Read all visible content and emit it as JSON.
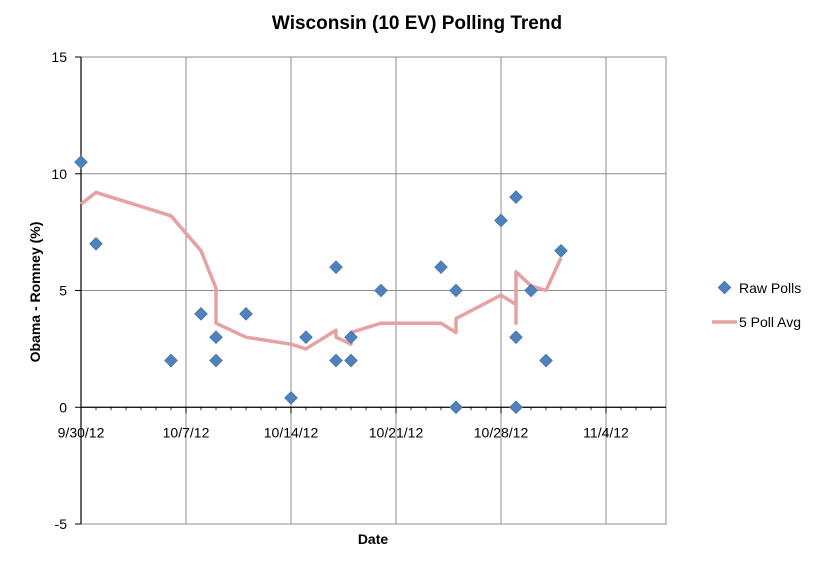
{
  "chart_data": {
    "type": "scatter",
    "title": "Wisconsin (10 EV) Polling Trend",
    "xlabel": "Date",
    "ylabel": "Obama - Romney (%)",
    "ylim": [
      -5,
      15
    ],
    "yticks": [
      -5,
      0,
      5,
      10,
      15
    ],
    "xlim": [
      "2012-09-30",
      "2012-11-08"
    ],
    "xticks": [
      {
        "date": "2012-09-30",
        "label": "9/30/12"
      },
      {
        "date": "2012-10-07",
        "label": "10/7/12"
      },
      {
        "date": "2012-10-14",
        "label": "10/14/12"
      },
      {
        "date": "2012-10-21",
        "label": "10/21/12"
      },
      {
        "date": "2012-10-28",
        "label": "10/28/12"
      },
      {
        "date": "2012-11-04",
        "label": "11/4/12"
      }
    ],
    "grid": true,
    "legend_position": "right",
    "series": [
      {
        "name": "Raw Polls",
        "kind": "scatter",
        "color": "#4F81BD",
        "points": [
          {
            "x": "2012-09-30",
            "y": 10.5
          },
          {
            "x": "2012-10-01",
            "y": 7
          },
          {
            "x": "2012-10-06",
            "y": 2
          },
          {
            "x": "2012-10-08",
            "y": 4
          },
          {
            "x": "2012-10-09",
            "y": 3
          },
          {
            "x": "2012-10-09",
            "y": 2
          },
          {
            "x": "2012-10-11",
            "y": 4
          },
          {
            "x": "2012-10-14",
            "y": 0.4
          },
          {
            "x": "2012-10-15",
            "y": 3
          },
          {
            "x": "2012-10-17",
            "y": 6
          },
          {
            "x": "2012-10-17",
            "y": 2
          },
          {
            "x": "2012-10-18",
            "y": 3
          },
          {
            "x": "2012-10-18",
            "y": 2
          },
          {
            "x": "2012-10-20",
            "y": 5
          },
          {
            "x": "2012-10-24",
            "y": 6
          },
          {
            "x": "2012-10-25",
            "y": 5
          },
          {
            "x": "2012-10-25",
            "y": 0
          },
          {
            "x": "2012-10-28",
            "y": 8
          },
          {
            "x": "2012-10-29",
            "y": 9
          },
          {
            "x": "2012-10-29",
            "y": 3
          },
          {
            "x": "2012-10-29",
            "y": 0
          },
          {
            "x": "2012-10-30",
            "y": 5
          },
          {
            "x": "2012-10-31",
            "y": 2
          },
          {
            "x": "2012-11-01",
            "y": 6.7
          }
        ]
      },
      {
        "name": "5 Poll Avg",
        "kind": "line",
        "color": "#E6A1A1",
        "points": [
          {
            "x": "2012-09-30",
            "y": 8.7
          },
          {
            "x": "2012-10-01",
            "y": 9.2
          },
          {
            "x": "2012-10-06",
            "y": 8.2
          },
          {
            "x": "2012-10-08",
            "y": 6.7
          },
          {
            "x": "2012-10-09",
            "y": 5.1
          },
          {
            "x": "2012-10-09",
            "y": 3.6
          },
          {
            "x": "2012-10-11",
            "y": 3.0
          },
          {
            "x": "2012-10-14",
            "y": 2.7
          },
          {
            "x": "2012-10-15",
            "y": 2.5
          },
          {
            "x": "2012-10-17",
            "y": 3.3
          },
          {
            "x": "2012-10-17",
            "y": 3.0
          },
          {
            "x": "2012-10-18",
            "y": 2.7
          },
          {
            "x": "2012-10-18",
            "y": 3.2
          },
          {
            "x": "2012-10-20",
            "y": 3.6
          },
          {
            "x": "2012-10-24",
            "y": 3.6
          },
          {
            "x": "2012-10-25",
            "y": 3.2
          },
          {
            "x": "2012-10-25",
            "y": 3.8
          },
          {
            "x": "2012-10-28",
            "y": 4.8
          },
          {
            "x": "2012-10-29",
            "y": 4.4
          },
          {
            "x": "2012-10-29",
            "y": 3.6
          },
          {
            "x": "2012-10-29",
            "y": 5.8
          },
          {
            "x": "2012-10-30",
            "y": 5.2
          },
          {
            "x": "2012-10-31",
            "y": 5.0
          },
          {
            "x": "2012-11-01",
            "y": 6.4
          }
        ]
      }
    ]
  }
}
